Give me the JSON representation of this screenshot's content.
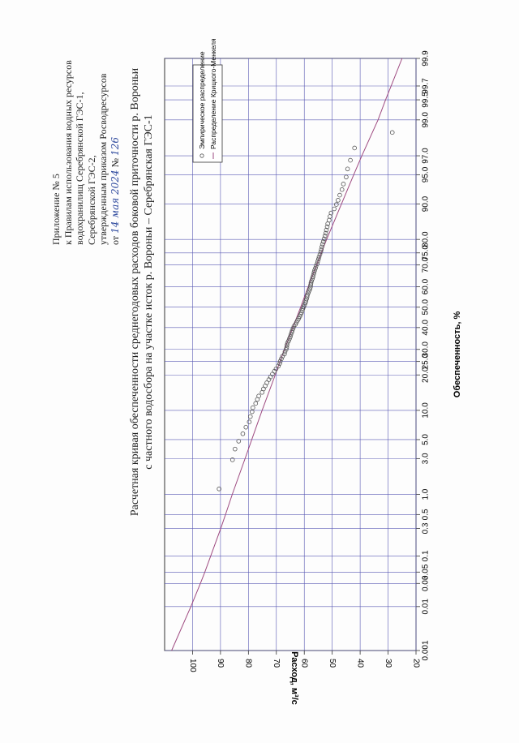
{
  "annex": {
    "line1": "Приложение № 5",
    "line2": "к Правилам использования водных ресурсов",
    "line3": "водохранилищ Серебрянской ГЭС-1,",
    "line4": "Серебрянской ГЭС-2,",
    "line5": "утвержденным приказом Росводресурсов",
    "line6_prefix": "от",
    "handwritten_date": "14 мая 2024",
    "number_sign": "№",
    "handwritten_number": "126"
  },
  "chart_data": {
    "type": "scatter",
    "title": "Расчетная кривая обеспеченности среднегодовых расходов боковой приточности р. Вороньи",
    "subtitle": "с частного водосбора на участке исток р. Вороньи – Серебрянская ГЭС-1",
    "xlabel": "Обеспеченность, %",
    "ylabel": "Расход, м³/с",
    "x_scale": "probability (normal)",
    "x_ticks": [
      "0.001",
      "0.01",
      "0.03",
      "0.05",
      "0.1",
      "0.3",
      "0.5",
      "1.0",
      "3.0",
      "5.0",
      "10.0",
      "20.0",
      "25.0",
      "30.0",
      "40.0",
      "50.0",
      "60.0",
      "70.0",
      "75.0",
      "80.0",
      "90.0",
      "95.0",
      "97.0",
      "99.0",
      "99.5",
      "99.7",
      "99.9"
    ],
    "y_ticks": [
      "20",
      "30",
      "40",
      "50",
      "60",
      "70",
      "80",
      "90",
      "100"
    ],
    "ylim": [
      20,
      110
    ],
    "grid": true,
    "legend_position": "top-right",
    "series": [
      {
        "name": "Эмпирическое распределение",
        "marker": "circle",
        "color": "#555555",
        "points": [
          [
            1.2,
            90.5
          ],
          [
            2.9,
            85.7
          ],
          [
            3.9,
            84.8
          ],
          [
            4.8,
            83.5
          ],
          [
            5.8,
            82.0
          ],
          [
            6.8,
            80.9
          ],
          [
            7.7,
            79.7
          ],
          [
            8.7,
            79.3
          ],
          [
            9.7,
            78.7
          ],
          [
            10.6,
            78.4
          ],
          [
            11.6,
            77.4
          ],
          [
            12.6,
            76.8
          ],
          [
            13.5,
            76.3
          ],
          [
            14.5,
            75.1
          ],
          [
            15.5,
            74.6
          ],
          [
            16.4,
            74.0
          ],
          [
            17.4,
            73.4
          ],
          [
            18.4,
            72.7
          ],
          [
            19.3,
            72.1
          ],
          [
            20.3,
            71.4
          ],
          [
            21.3,
            70.7
          ],
          [
            22.2,
            70.1
          ],
          [
            23.2,
            69.3
          ],
          [
            24.2,
            68.8
          ],
          [
            25.1,
            68.6
          ],
          [
            26.1,
            68.2
          ],
          [
            27.1,
            67.8
          ],
          [
            28.0,
            67.1
          ],
          [
            29.0,
            66.9
          ],
          [
            30.0,
            66.5
          ],
          [
            30.9,
            66.3
          ],
          [
            31.9,
            66.2
          ],
          [
            32.9,
            66.0
          ],
          [
            33.8,
            65.6
          ],
          [
            34.8,
            65.3
          ],
          [
            35.7,
            65.0
          ],
          [
            36.7,
            64.8
          ],
          [
            37.7,
            64.5
          ],
          [
            38.6,
            64.3
          ],
          [
            39.6,
            64.0
          ],
          [
            40.6,
            63.7
          ],
          [
            41.5,
            63.2
          ],
          [
            42.5,
            62.8
          ],
          [
            43.5,
            62.4
          ],
          [
            44.4,
            62.0
          ],
          [
            45.4,
            61.6
          ],
          [
            46.4,
            61.3
          ],
          [
            47.3,
            61.0
          ],
          [
            48.3,
            60.7
          ],
          [
            49.3,
            60.5
          ],
          [
            50.2,
            60.2
          ],
          [
            51.2,
            59.9
          ],
          [
            52.2,
            59.6
          ],
          [
            53.1,
            59.4
          ],
          [
            54.1,
            59.2
          ],
          [
            55.1,
            59.0
          ],
          [
            56.0,
            58.9
          ],
          [
            57.0,
            58.6
          ],
          [
            58.0,
            58.3
          ],
          [
            58.9,
            58.0
          ],
          [
            59.9,
            57.8
          ],
          [
            60.9,
            57.7
          ],
          [
            61.8,
            57.6
          ],
          [
            62.8,
            57.4
          ],
          [
            63.8,
            57.1
          ],
          [
            64.7,
            56.9
          ],
          [
            65.7,
            56.7
          ],
          [
            66.7,
            56.5
          ],
          [
            67.6,
            56.3
          ],
          [
            68.6,
            56.0
          ],
          [
            69.6,
            55.8
          ],
          [
            70.5,
            55.4
          ],
          [
            71.5,
            55.2
          ],
          [
            72.5,
            54.9
          ],
          [
            73.4,
            54.7
          ],
          [
            74.4,
            54.4
          ],
          [
            75.4,
            54.1
          ],
          [
            76.3,
            53.9
          ],
          [
            77.3,
            53.7
          ],
          [
            78.3,
            53.5
          ],
          [
            79.2,
            53.2
          ],
          [
            80.2,
            52.9
          ],
          [
            81.2,
            52.6
          ],
          [
            82.1,
            52.3
          ],
          [
            83.1,
            52.1
          ],
          [
            84.1,
            51.8
          ],
          [
            85.0,
            51.6
          ],
          [
            86.0,
            51.1
          ],
          [
            87.0,
            50.8
          ],
          [
            87.9,
            50.4
          ],
          [
            88.9,
            49.3
          ],
          [
            89.9,
            48.5
          ],
          [
            90.8,
            47.9
          ],
          [
            91.8,
            47.3
          ],
          [
            92.8,
            46.5
          ],
          [
            93.7,
            46.0
          ],
          [
            94.7,
            45.0
          ],
          [
            95.7,
            44.5
          ],
          [
            96.6,
            43.5
          ],
          [
            97.6,
            42.0
          ],
          [
            98.5,
            28.5
          ]
        ]
      },
      {
        "name": "Распределение Крицкого-Менкеля",
        "color": "#9e4a80",
        "points": [
          [
            0.001,
            107.5
          ],
          [
            0.01,
            100.6
          ],
          [
            0.03,
            97.2
          ],
          [
            0.05,
            95.6
          ],
          [
            0.1,
            93.5
          ],
          [
            0.3,
            89.9
          ],
          [
            0.5,
            88.2
          ],
          [
            1.0,
            85.8
          ],
          [
            3.0,
            81.2
          ],
          [
            5.0,
            78.8
          ],
          [
            10.0,
            75.1
          ],
          [
            20.0,
            70.4
          ],
          [
            25.0,
            68.7
          ],
          [
            30.0,
            67.1
          ],
          [
            40.0,
            64.1
          ],
          [
            50.0,
            61.3
          ],
          [
            60.0,
            58.6
          ],
          [
            70.0,
            55.6
          ],
          [
            75.0,
            53.9
          ],
          [
            80.0,
            52.0
          ],
          [
            90.0,
            46.7
          ],
          [
            95.0,
            42.3
          ],
          [
            97.0,
            39.4
          ],
          [
            99.0,
            33.6
          ],
          [
            99.5,
            30.9
          ],
          [
            99.7,
            28.9
          ],
          [
            99.9,
            25.0
          ]
        ]
      }
    ]
  }
}
